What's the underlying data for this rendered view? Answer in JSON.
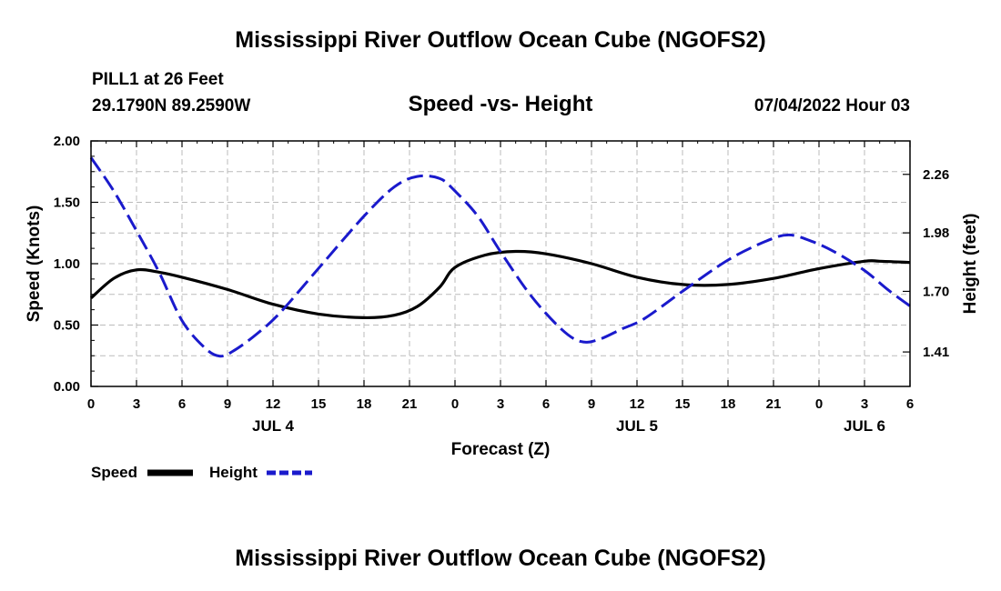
{
  "page": {
    "title_top": "Mississippi River Outflow Ocean Cube (NGOFS2)",
    "title_bottom": "Mississippi River Outflow Ocean Cube (NGOFS2)",
    "station": "PILL1 at 26 Feet",
    "coords": "29.1790N  89.2590W",
    "subtitle": "Speed -vs- Height",
    "datetime": "07/04/2022 Hour 03"
  },
  "legend": {
    "speed_label": "Speed",
    "height_label": "Height"
  },
  "colors": {
    "speed": "#000000",
    "height": "#1a1acc",
    "grid": "#bbbbbb"
  },
  "chart_data": {
    "type": "line",
    "title": "Speed -vs- Height",
    "xlabel": "Forecast (Z)",
    "ylabel": "Speed (Knots)",
    "y2label": "Height (feet)",
    "xlim": [
      0,
      54
    ],
    "ylim": [
      0,
      2.0
    ],
    "y2lim": [
      1.245,
      2.42
    ],
    "x_ticks": [
      0,
      3,
      6,
      9,
      12,
      15,
      18,
      21,
      24,
      27,
      30,
      33,
      36,
      39,
      42,
      45,
      48,
      51,
      54
    ],
    "x_tick_labels": [
      "0",
      "3",
      "6",
      "9",
      "12",
      "15",
      "18",
      "21",
      "0",
      "3",
      "6",
      "9",
      "12",
      "15",
      "18",
      "21",
      "0",
      "3",
      "6"
    ],
    "day_labels": [
      {
        "x": 12,
        "label": "JUL 4"
      },
      {
        "x": 36,
        "label": "JUL 5"
      },
      {
        "x": 51,
        "label": "JUL 6"
      }
    ],
    "y_ticks": [
      0,
      0.5,
      1.0,
      1.5,
      2.0
    ],
    "y_tick_labels": [
      "0.00",
      "0.50",
      "1.00",
      "1.50",
      "2.00"
    ],
    "y2_ticks": [
      1.41,
      1.7,
      1.98,
      2.26
    ],
    "y2_tick_labels": [
      "1.41",
      "1.70",
      "1.98",
      "2.26"
    ],
    "grid": true,
    "series": [
      {
        "name": "Speed",
        "axis": "left",
        "style": "solid",
        "x": [
          0,
          1.5,
          3,
          4.5,
          6,
          9,
          12,
          15,
          18,
          20,
          21.5,
          23,
          24,
          26,
          28,
          30,
          33,
          36,
          39,
          42,
          45,
          48,
          51,
          52,
          54
        ],
        "values": [
          0.72,
          0.88,
          0.95,
          0.93,
          0.89,
          0.79,
          0.67,
          0.59,
          0.56,
          0.58,
          0.65,
          0.81,
          0.97,
          1.07,
          1.1,
          1.08,
          1.0,
          0.89,
          0.83,
          0.83,
          0.88,
          0.96,
          1.02,
          1.02,
          1.01
        ]
      },
      {
        "name": "Height",
        "axis": "right",
        "style": "dashed",
        "x": [
          0,
          1.5,
          3,
          4.5,
          6,
          7.5,
          8.5,
          9.5,
          11,
          12.5,
          15,
          18,
          20,
          21.5,
          23,
          24,
          25.5,
          27,
          29,
          31,
          32.3,
          33.5,
          35,
          36.5,
          39,
          42,
          44.5,
          46,
          47.5,
          49,
          51,
          52.5,
          54
        ],
        "values": [
          2.34,
          2.18,
          1.99,
          1.79,
          1.56,
          1.43,
          1.39,
          1.42,
          1.5,
          1.6,
          1.81,
          2.06,
          2.2,
          2.25,
          2.24,
          2.18,
          2.06,
          1.89,
          1.68,
          1.52,
          1.46,
          1.47,
          1.52,
          1.57,
          1.7,
          1.85,
          1.94,
          1.97,
          1.94,
          1.89,
          1.8,
          1.71,
          1.63
        ]
      }
    ]
  }
}
